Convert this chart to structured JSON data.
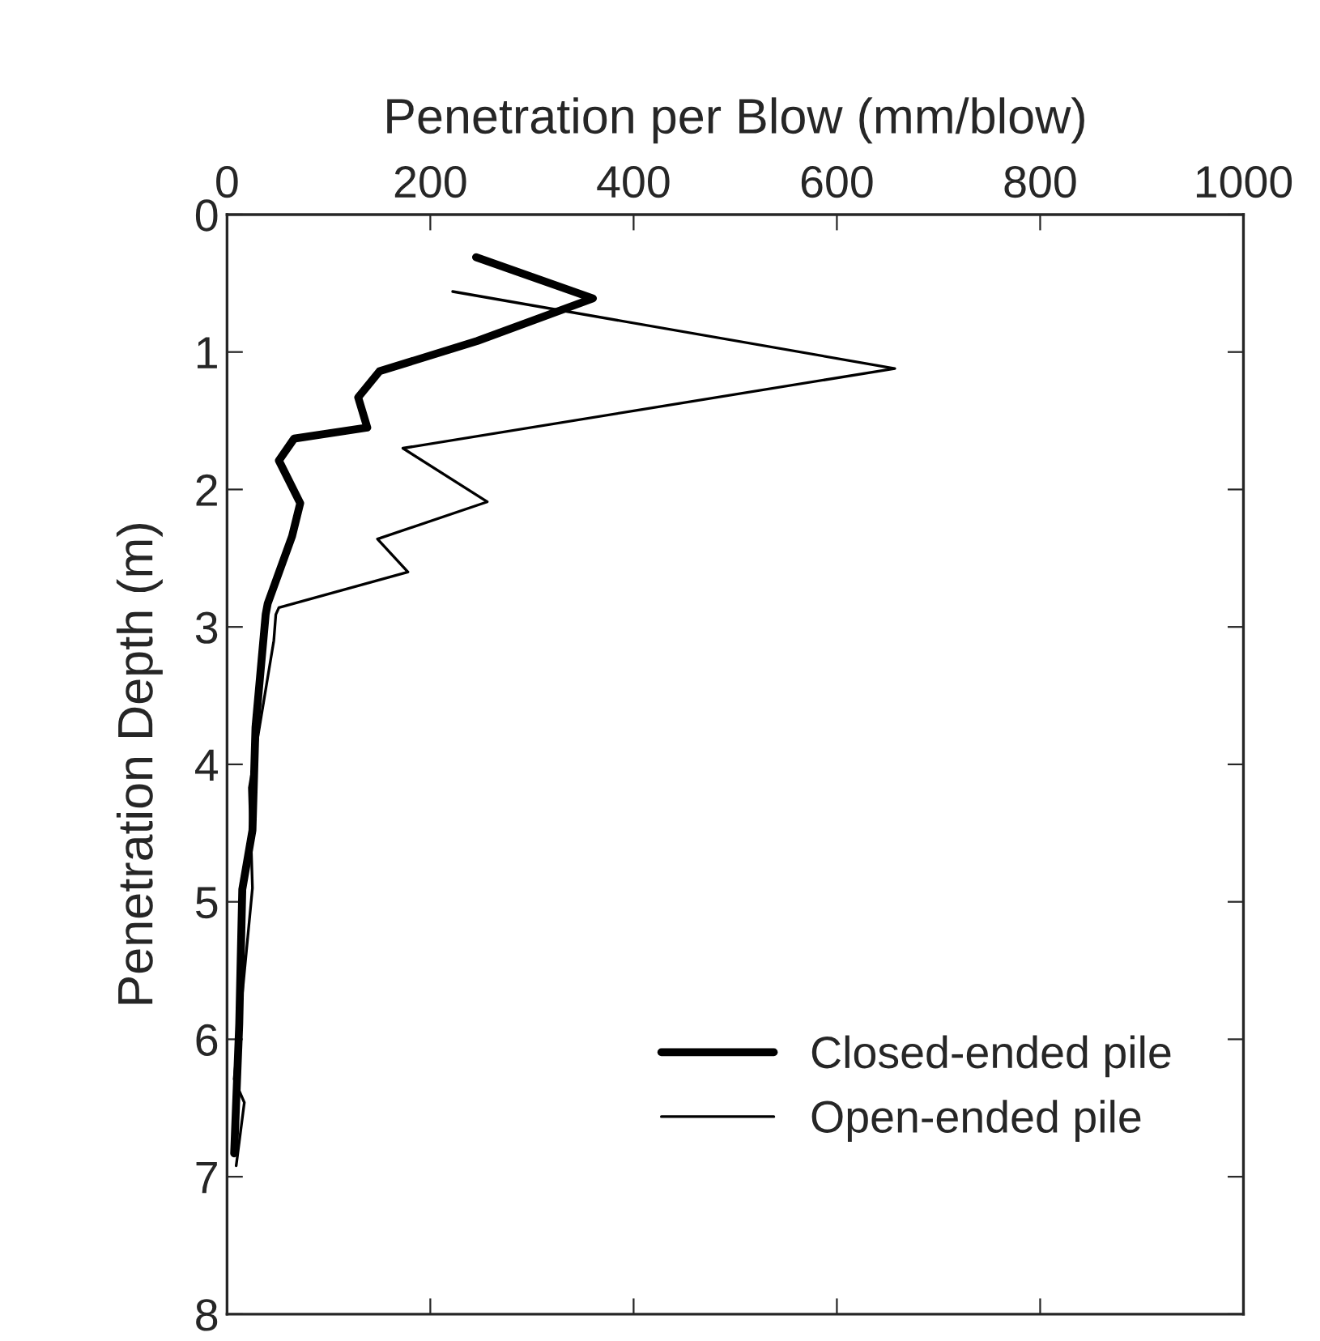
{
  "chart_data": {
    "type": "line",
    "xlabel": "Penetration per Blow (mm/blow)",
    "ylabel": "Penetration Depth (m)",
    "xlim": [
      0,
      1000
    ],
    "xticks": [
      0,
      200,
      400,
      600,
      800,
      1000
    ],
    "ylim": [
      8,
      0
    ],
    "yticks": [
      0,
      1,
      2,
      3,
      4,
      5,
      6,
      7,
      8
    ],
    "grid": false,
    "legend": "bottom right",
    "marker": "none",
    "line_style": "solid",
    "series": [
      {
        "name": "Closed-ended pile",
        "color": "#000000",
        "x": [
          245,
          360,
          246,
          150,
          129,
          138,
          66,
          51,
          72,
          64,
          40,
          38,
          28,
          25,
          15,
          12,
          7
        ],
        "values": [
          0.31,
          0.61,
          0.92,
          1.14,
          1.33,
          1.55,
          1.63,
          1.79,
          2.1,
          2.34,
          2.83,
          2.91,
          3.73,
          4.48,
          4.91,
          5.89,
          6.83
        ]
      },
      {
        "name": "Open-ended pile",
        "color": "#000000",
        "x": [
          222,
          657,
          173,
          256,
          148,
          178,
          51,
          48,
          46,
          22,
          25,
          7,
          17,
          9
        ],
        "values": [
          0.56,
          1.12,
          1.7,
          2.09,
          2.36,
          2.6,
          2.86,
          2.91,
          3.1,
          4.17,
          4.9,
          6.29,
          6.46,
          6.92
        ]
      }
    ]
  }
}
